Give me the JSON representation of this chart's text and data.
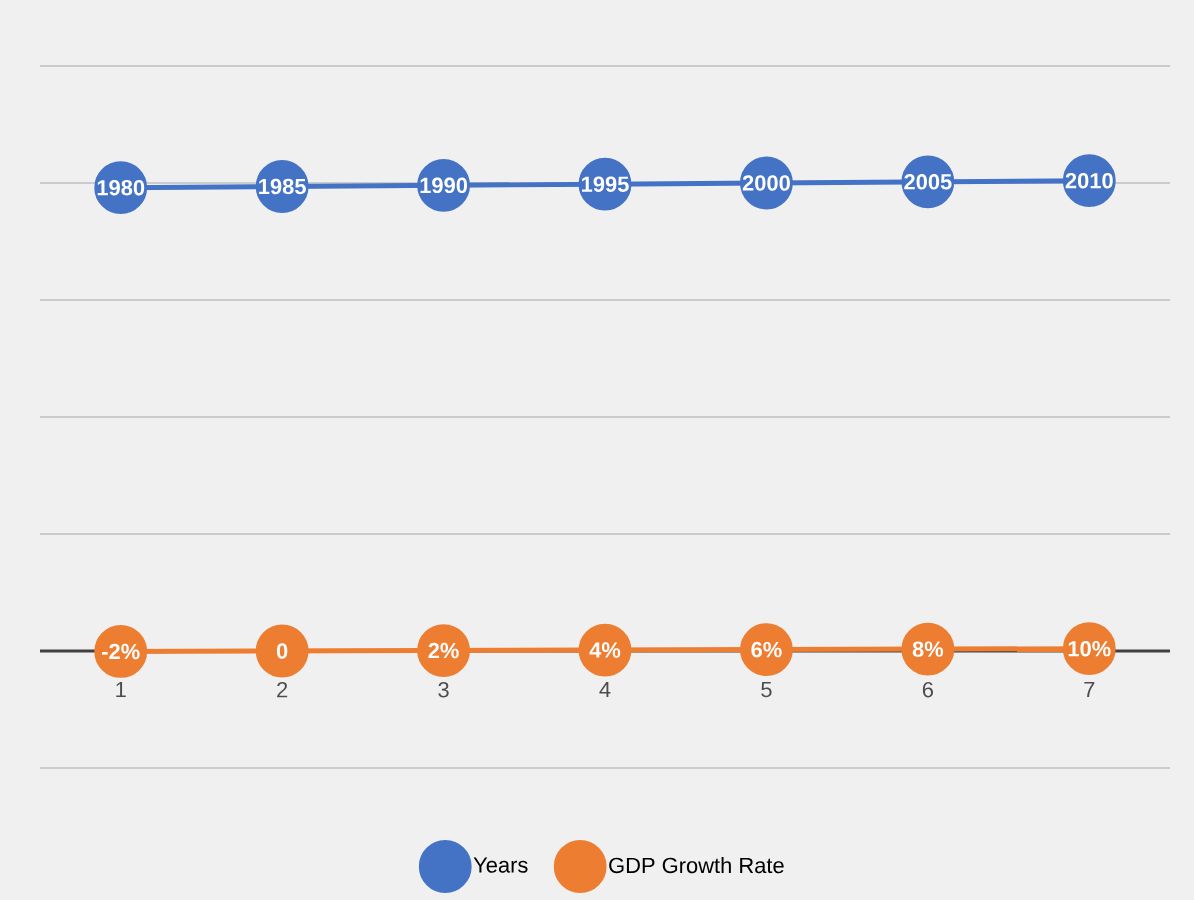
{
  "chart_data": {
    "type": "line",
    "categories": [
      "1",
      "2",
      "3",
      "4",
      "5",
      "6",
      "7"
    ],
    "series": [
      {
        "name": "Years",
        "color": "#4472c4",
        "values": [
          1980,
          1985,
          1990,
          1995,
          2000,
          2005,
          2010
        ],
        "value_labels": [
          "1980",
          "1985",
          "1990",
          "1995",
          "2000",
          "2005",
          "2010"
        ]
      },
      {
        "name": "GDP Growth Rate",
        "color": "#ed7d31",
        "values": [
          -2,
          0,
          2,
          4,
          6,
          8,
          10
        ],
        "value_labels": [
          "-2%",
          "0",
          "2%",
          "4%",
          "6%",
          "8%",
          "10%"
        ]
      }
    ],
    "ylim": [
      -500,
      2500
    ],
    "yticks": [
      {
        "value": -500,
        "label": null
      },
      {
        "value": 0,
        "label": null
      },
      {
        "value": 500,
        "label": null
      },
      {
        "value": 1000,
        "label": null
      },
      {
        "value": 1500,
        "label": null
      },
      {
        "value": 2000,
        "label": null
      },
      {
        "value": 2500,
        "label": null
      }
    ],
    "grid": "y",
    "legend": "bottom",
    "marker": "circle",
    "line_style": "solid",
    "tick_labels": "x"
  }
}
